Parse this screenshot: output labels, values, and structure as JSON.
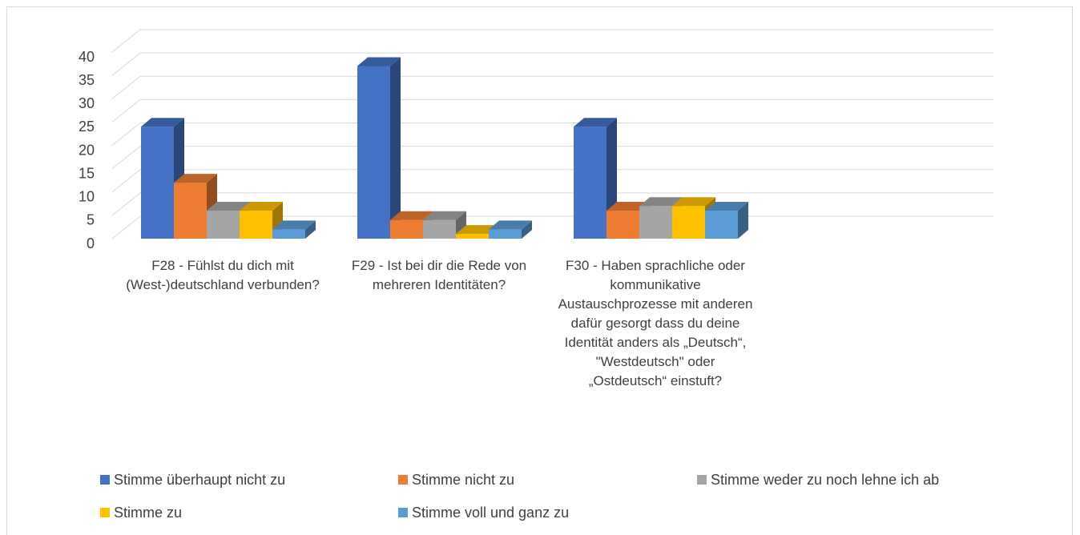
{
  "chart_data": {
    "type": "bar3d",
    "categories": [
      "F28 - Fühlst du dich mit (West-)deutschland verbunden?",
      "F29 - Ist bei dir die Rede von mehreren Identitäten?",
      "F30 - Haben sprachliche oder kommunikative Austauschprozesse mit anderen dafür gesorgt dass du deine Identität anders als „Deutsch“, \"Westdeutsch\" oder „Ostdeutsch“ einstuft?"
    ],
    "series": [
      {
        "name": "Stimme überhaupt nicht zu",
        "color": "#4472c4",
        "values": [
          24,
          37,
          24
        ]
      },
      {
        "name": "Stimme nicht zu",
        "color": "#ed7d31",
        "values": [
          12,
          4,
          6
        ]
      },
      {
        "name": "Stimme weder zu noch lehne ich ab",
        "color": "#a5a5a5",
        "values": [
          6,
          4,
          7
        ]
      },
      {
        "name": "Stimme zu",
        "color": "#ffc000",
        "values": [
          6,
          1,
          7
        ]
      },
      {
        "name": "Stimme voll und ganz zu",
        "color": "#5b9bd5",
        "values": [
          2,
          2,
          6
        ]
      }
    ],
    "ylim": [
      0,
      40
    ],
    "yticks": [
      0,
      5,
      10,
      15,
      20,
      25,
      30,
      35,
      40
    ],
    "grid": true
  }
}
